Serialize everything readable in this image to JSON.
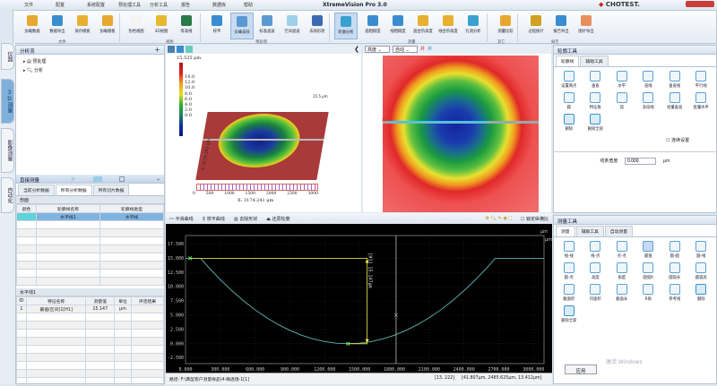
{
  "title": "XtremeVision Pro 3.0",
  "logo": "CHOTEST.",
  "menu": [
    "文件",
    "配置",
    "系统配置",
    "预处理工具",
    "分析工具",
    "报告",
    "数据库",
    "帮助"
  ],
  "ribbon": {
    "buttons": [
      "加载数据",
      "数据导出",
      "保存模板",
      "加载模板",
      "伪色视图",
      "3D视图",
      "等高线",
      "校平",
      "尖峰去除",
      "标准滤波",
      "空间滤波",
      "去除形状",
      "轮廓分析",
      "面粗糙度",
      "线粗糙度",
      "面台阶高度",
      "线台阶高度",
      "孔洞分析",
      "测量比较",
      "过程统计",
      "报告导出",
      "图片导出"
    ],
    "active": [
      "尖峰去除",
      "轮廓分析"
    ],
    "groups": [
      "文件",
      "视图",
      "预处理",
      "测量",
      "其它",
      "报告"
    ]
  },
  "side_tabs": [
    "仪器",
    "3D测量",
    "影像测量",
    "自动化"
  ],
  "left": {
    "flow_title": "分析流",
    "tree": [
      "预处理",
      "分析"
    ],
    "direct_title": "直接测量",
    "tabs": [
      "当前分析数据",
      "所有分析数据",
      "所有切片数据"
    ],
    "section": "剖面",
    "profile_headers": [
      "颜色",
      "轮廓线名称",
      "轮廓线类型"
    ],
    "profile_rows": [
      {
        "name": "水平线1",
        "type": "水平线",
        "color": "#5fd3d8"
      }
    ],
    "line_title": "水平线1",
    "meas_headers": [
      "ID",
      "特征名称",
      "测量值",
      "单位",
      "评定结果"
    ],
    "meas_rows": [
      [
        "1",
        "最值(区间)1[H1]",
        "15.147",
        "μm",
        ""
      ]
    ]
  },
  "view3d": {
    "max_label": "15.535 μm",
    "scale": [
      "14.0",
      "12.0",
      "10.0",
      "8.0",
      "6.0",
      "4.0",
      "2.0",
      "0.0"
    ],
    "x_ticks": [
      "0",
      "500",
      "1000",
      "1500",
      "2000",
      "2500",
      "3000"
    ],
    "x_label": "X: 3174.241 μm",
    "y_label": "Y: 3174.241 μm",
    "z_label": "15.5 μm"
  },
  "viewmap": {
    "select1": "高度",
    "select2": "自动"
  },
  "bottom_toolbar": [
    "平滑曲线",
    "校平曲线",
    "去除形状",
    "还原轮廓"
  ],
  "bottom_checkbox": "锁定纵横比",
  "chart_data": {
    "type": "line",
    "xlabel": "μm",
    "ylabel": "μm",
    "xlim": [
      0,
      3090
    ],
    "ylim": [
      -3.5,
      19
    ],
    "x_ticks": [
      "0.000",
      "300.000",
      "600.000",
      "900.000",
      "1200.000",
      "1500.000",
      "1800.000",
      "2100.000",
      "2400.000",
      "2700.000",
      "3000.000"
    ],
    "y_ticks": [
      "-2.500",
      "0.000",
      "2.500",
      "5.000",
      "7.500",
      "10.000",
      "12.500",
      "15.000",
      "17.500"
    ],
    "series": [
      {
        "color": "#5fb7b5",
        "x": [
          0,
          100,
          130,
          200,
          300,
          400,
          500,
          600,
          700,
          800,
          900,
          1000,
          1100,
          1200,
          1300,
          1400,
          1500,
          1600,
          1700,
          1800,
          1900,
          2000,
          2100,
          2200,
          2300,
          2400,
          2500,
          2600,
          2670,
          2800,
          2900,
          3000,
          3090
        ],
        "y": [
          15,
          15,
          15,
          13.39,
          11.25,
          9.3,
          7.53,
          5.95,
          4.56,
          3.35,
          2.33,
          1.49,
          0.84,
          0.37,
          0.09,
          0,
          0.09,
          0.37,
          0.84,
          1.49,
          2.33,
          3.35,
          4.56,
          5.95,
          7.53,
          9.3,
          11.25,
          13.39,
          15,
          15,
          15,
          15,
          15
        ]
      }
    ],
    "markers": [
      {
        "x": 40,
        "y": 15
      },
      {
        "x": 1400,
        "y": 0
      }
    ],
    "measure": {
      "label": "[H1] 15.147μm",
      "x": 1565,
      "top": 15,
      "bottom": 0,
      "color": "#d8d84a"
    },
    "cursor": {
      "x": 1815,
      "y": 5
    }
  },
  "status": {
    "path": "路径: F:\\典型客户测量样品\\4-微透镜-1[1]",
    "pixel": "[13, 222]",
    "coords": "[41.807μm, 2485.625μm, 13.412μm]"
  },
  "contour_tools": {
    "title": "轮廓工具",
    "tabs": [
      "轮廓线",
      "辅助工具"
    ],
    "items": [
      "设置两点",
      "垂直",
      "水平",
      "直线",
      "垂直线",
      "平行线",
      "圆",
      "特征角",
      "弧",
      "多段线",
      "批量垂直",
      "批量水平",
      "删除",
      "删除全部"
    ],
    "checkbox": "连续设置",
    "width_label": "线条宽度",
    "width_value": "0.000",
    "width_unit": "μm"
  },
  "measure_tools": {
    "title": "测量工具",
    "tabs": [
      "测量",
      "辅助工具",
      "自动测量"
    ],
    "items": [
      "线-线",
      "线-点",
      "点-点",
      "最值",
      "圆-圆",
      "圆-线",
      "圆-点",
      "高度",
      "角度",
      "圆弧R",
      "圆弧长",
      "圆弧高",
      "截面积",
      "凹面积",
      "截面长",
      "R角",
      "参考线",
      "删除",
      "删除全部"
    ],
    "selected": "最值",
    "apply": "应用",
    "watermark": "激活 Windows"
  }
}
